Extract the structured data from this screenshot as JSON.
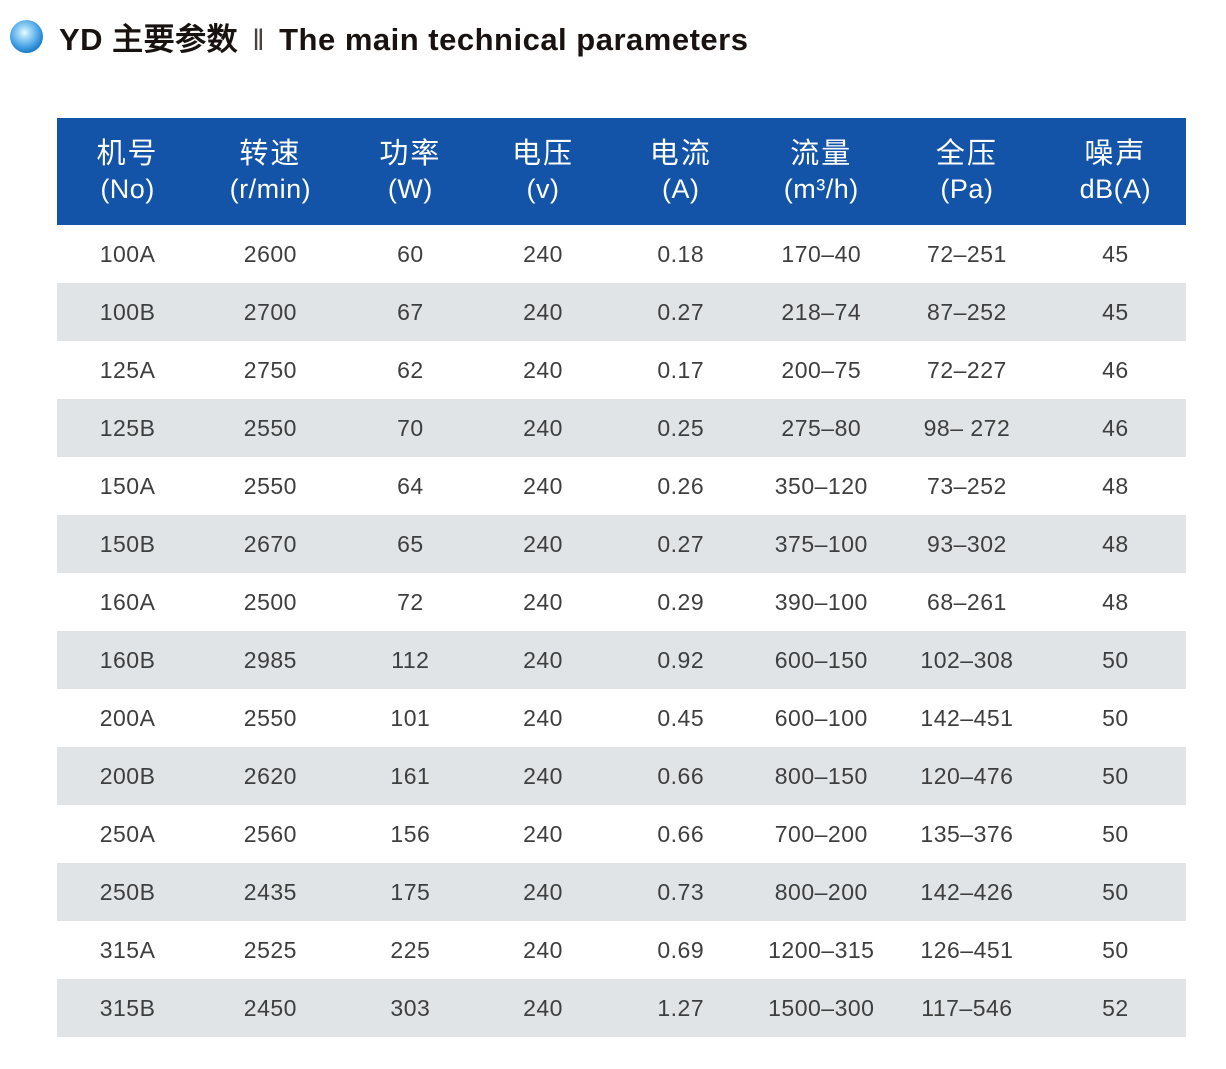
{
  "title": {
    "product": "YD 主要参数",
    "divider": "‖",
    "english": "The main technical parameters"
  },
  "colors": {
    "header_bg": "#1353a8",
    "row_alt_bg": "#e0e4e7",
    "bullet_blue": "#1a7fd0",
    "title_text": "#181310",
    "cell_text": "#3e3e3e"
  },
  "table": {
    "columns": [
      {
        "key": "model",
        "zh": "机号",
        "unit": "(No)"
      },
      {
        "key": "speed",
        "zh": "转速",
        "unit": "(r/min)"
      },
      {
        "key": "power",
        "zh": "功率",
        "unit": "(W)"
      },
      {
        "key": "voltage",
        "zh": "电压",
        "unit": "(v)"
      },
      {
        "key": "current",
        "zh": "电流",
        "unit": "(A)"
      },
      {
        "key": "airflow",
        "zh": "流量",
        "unit": "(m³/h)"
      },
      {
        "key": "pressure",
        "zh": "全压",
        "unit": "(Pa)"
      },
      {
        "key": "noise",
        "zh": "噪声",
        "unit": "dB(A)"
      }
    ],
    "rows": [
      [
        "100A",
        "2600",
        "60",
        "240",
        "0.18",
        "170–40",
        "72–251",
        "45"
      ],
      [
        "100B",
        "2700",
        "67",
        "240",
        "0.27",
        "218–74",
        "87–252",
        "45"
      ],
      [
        "125A",
        "2750",
        "62",
        "240",
        "0.17",
        "200–75",
        "72–227",
        "46"
      ],
      [
        "125B",
        "2550",
        "70",
        "240",
        "0.25",
        "275–80",
        "98– 272",
        "46"
      ],
      [
        "150A",
        "2550",
        "64",
        "240",
        "0.26",
        "350–120",
        "73–252",
        "48"
      ],
      [
        "150B",
        "2670",
        "65",
        "240",
        "0.27",
        "375–100",
        "93–302",
        "48"
      ],
      [
        "160A",
        "2500",
        "72",
        "240",
        "0.29",
        "390–100",
        "68–261",
        "48"
      ],
      [
        "160B",
        "2985",
        "112",
        "240",
        "0.92",
        "600–150",
        "102–308",
        "50"
      ],
      [
        "200A",
        "2550",
        "101",
        "240",
        "0.45",
        "600–100",
        "142–451",
        "50"
      ],
      [
        "200B",
        "2620",
        "161",
        "240",
        "0.66",
        "800–150",
        "120–476",
        "50"
      ],
      [
        "250A",
        "2560",
        "156",
        "240",
        "0.66",
        "700–200",
        "135–376",
        "50"
      ],
      [
        "250B",
        "2435",
        "175",
        "240",
        "0.73",
        "800–200",
        "142–426",
        "50"
      ],
      [
        "315A",
        "2525",
        "225",
        "240",
        "0.69",
        "1200–315",
        "126–451",
        "50"
      ],
      [
        "315B",
        "2450",
        "303",
        "240",
        "1.27",
        "1500–300",
        "117–546",
        "52"
      ]
    ]
  }
}
